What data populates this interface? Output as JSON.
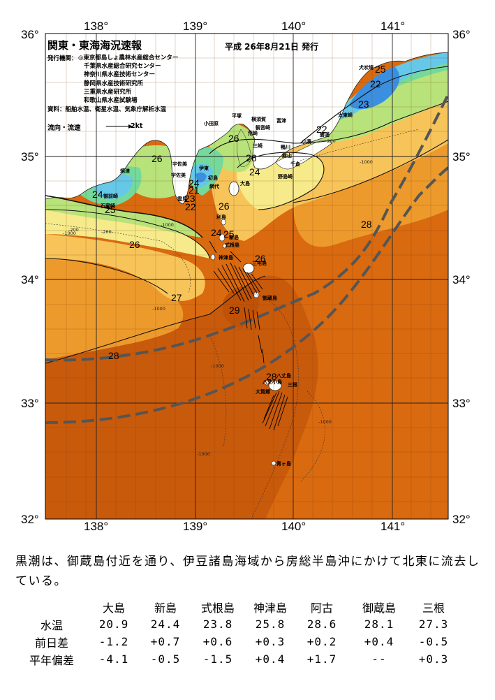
{
  "header": {
    "title": "関東・東海海況速報",
    "issue": "平成 26年8月21日 発行",
    "publisher_label": "発行機関：",
    "publishers": [
      "◎東京都島しょ農林水産総合センター",
      "千葉県水産総合研究センター",
      "神奈川県水産技術センター",
      "静岡県水産技術研究所",
      "三重県水産研究所",
      "和歌山県水産試験場"
    ],
    "source": "資料：船舶水温、衛星水温、気象庁解析水温",
    "flow_label": "流向・流速",
    "flow_unit": "2kt"
  },
  "axes": {
    "lon_top": [
      "138°",
      "139°",
      "140°",
      "141°"
    ],
    "lon_bottom": [
      "138°",
      "139°",
      "140°",
      "141°"
    ],
    "lat_left": [
      "36°",
      "35°",
      "34°",
      "33°",
      "32°"
    ],
    "lat_right": [
      "36°",
      "35°",
      "34°",
      "33°",
      "32°"
    ]
  },
  "isotherms": [
    "25",
    "22",
    "23",
    "22",
    "26",
    "26",
    "24",
    "26",
    "24",
    "21",
    "23",
    "22",
    "24",
    "25",
    "26",
    "26",
    "24",
    "25",
    "26",
    "27",
    "29",
    "28",
    "28",
    "28"
  ],
  "places": [
    "犬吠埼",
    "太東崎",
    "勝浦",
    "小湊",
    "鴨川",
    "横須賀",
    "観音崎",
    "平塚",
    "小田原",
    "荒崎",
    "三崎",
    "富津",
    "館山",
    "千倉",
    "野島崎",
    "大島",
    "宇佐美",
    "伊東",
    "宇佐美",
    "初島",
    "網代",
    "焼津",
    "御前崎",
    "石廊崎",
    "雲見",
    "利島",
    "新島",
    "式根島",
    "神津島",
    "三宅島",
    "御蔵島",
    "八丈島",
    "八丈小島",
    "青ヶ島",
    "三根",
    "大賀郷"
  ],
  "depths": [
    "-200",
    "-1000",
    "-200",
    "-1000",
    "-1000",
    "-1000",
    "-1000",
    "-200",
    "-1000",
    "-1000"
  ],
  "summary": "黒潮は、御蔵島付近を通り、伊豆諸島海域から房総半島沖にかけて北東に流去している。",
  "table": {
    "columns": [
      "大島",
      "新島",
      "式根島",
      "神津島",
      "阿古",
      "御蔵島",
      "三根"
    ],
    "rows": [
      {
        "label": "水温",
        "values": [
          "20.9",
          "24.4",
          "23.8",
          "25.8",
          "28.6",
          "28.1",
          "27.3"
        ]
      },
      {
        "label": "前日差",
        "values": [
          "-1.2",
          "+0.7",
          "+0.6",
          "+0.3",
          "+0.2",
          "+0.4",
          "-0.5"
        ]
      },
      {
        "label": "平年偏差",
        "values": [
          "-4.1",
          "-0.5",
          "-1.5",
          "+0.4",
          "+1.7",
          "--",
          "+0.3"
        ]
      }
    ]
  },
  "colors": {
    "sst_29": "#c85a0c",
    "sst_28": "#d96a10",
    "sst_27": "#ed9a2c",
    "sst_26": "#f7c45a",
    "sst_25": "#f6ea8a",
    "sst_24": "#b8e27a",
    "sst_23": "#74d99a",
    "sst_22": "#66c8e8",
    "sst_21": "#3a8fe0",
    "land": "#ffffff",
    "kuroshio_line": "#555555"
  }
}
